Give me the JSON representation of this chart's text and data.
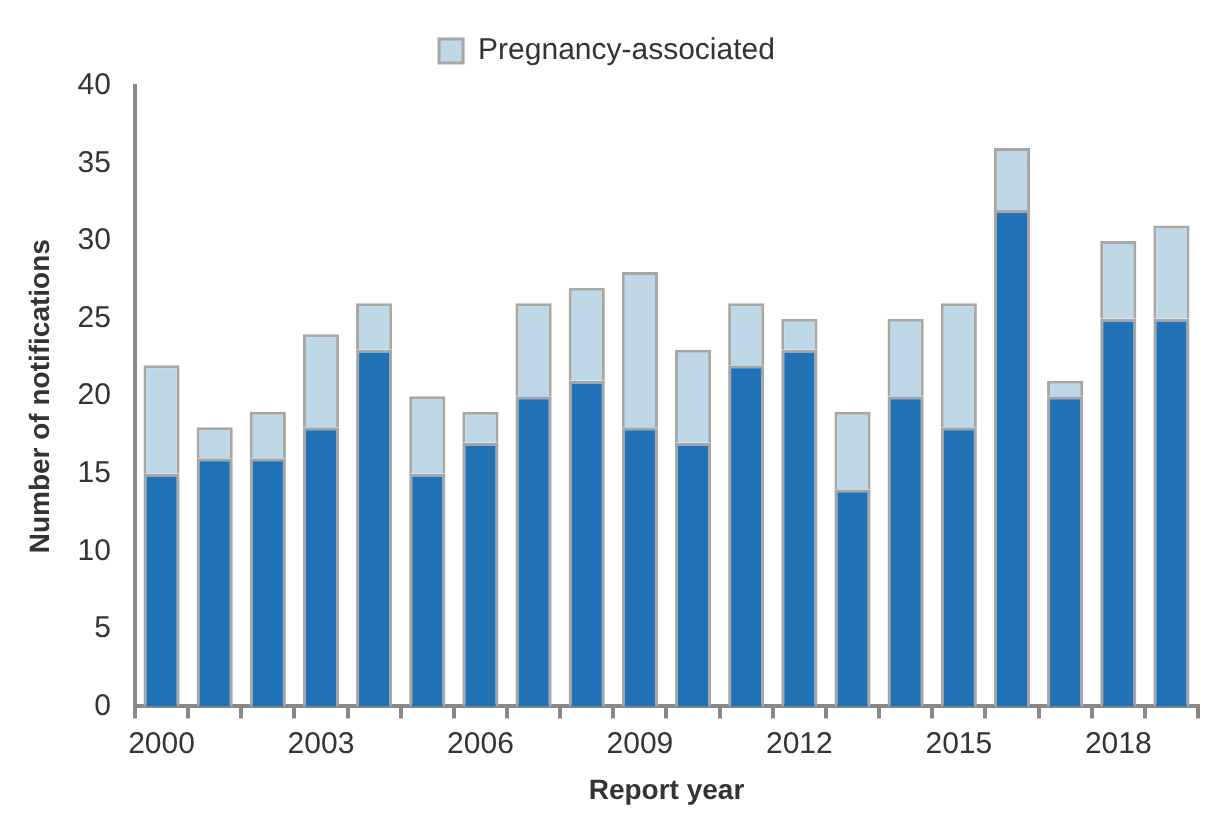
{
  "chart_data": {
    "type": "bar",
    "stacked": true,
    "xlabel": "Report year",
    "ylabel": "Number of notifications",
    "categories": [
      "2000",
      null,
      null,
      "2003",
      null,
      null,
      "2006",
      null,
      null,
      "2009",
      null,
      null,
      "2012",
      null,
      null,
      "2015",
      null,
      null,
      "2018",
      null
    ],
    "series": [
      {
        "color": "#2171b5",
        "values": [
          15,
          16,
          16,
          18,
          23,
          15,
          17,
          20,
          21,
          18,
          17,
          22,
          23,
          14,
          20,
          18,
          32,
          20,
          25,
          25
        ]
      },
      {
        "name": "Pregnancy-associated",
        "color": "#bdd7e7",
        "values": [
          7,
          2,
          3,
          6,
          3,
          5,
          2,
          6,
          6,
          10,
          6,
          4,
          2,
          5,
          5,
          8,
          4,
          1,
          5,
          6
        ]
      }
    ],
    "ylim": [
      0,
      40
    ],
    "yticks": [
      0,
      5,
      10,
      15,
      20,
      25,
      30,
      35,
      40
    ],
    "grid": false,
    "legend": "top"
  }
}
